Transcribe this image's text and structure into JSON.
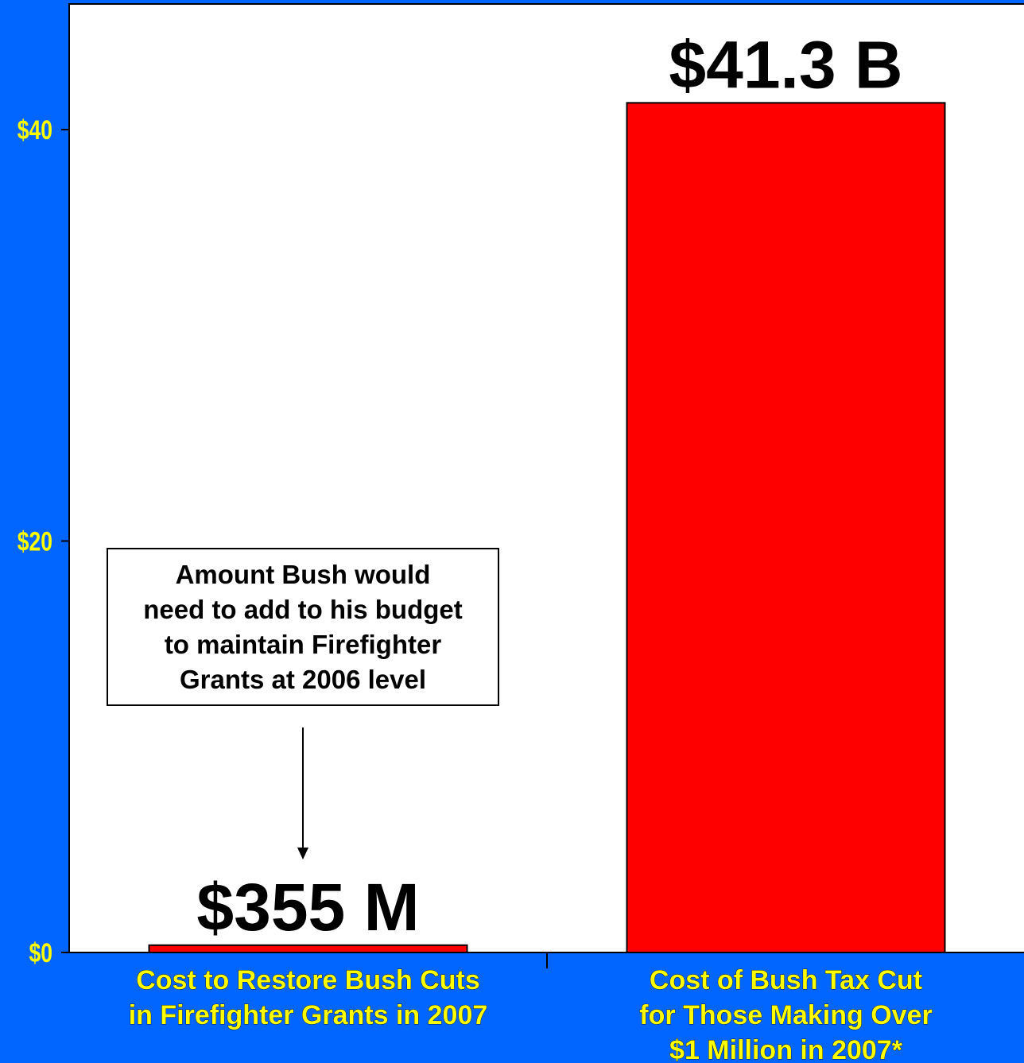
{
  "chart_data": {
    "type": "bar",
    "categories": [
      [
        "Cost to Restore Bush Cuts",
        "in Firefighter Grants in 2007"
      ],
      [
        "Cost of Bush Tax Cut",
        "for Those Making Over",
        "$1 Million in 2007*"
      ]
    ],
    "values": [
      0.355,
      41.3
    ],
    "data_labels": [
      "$355 M",
      "$41.3 B"
    ],
    "y_ticks": [
      {
        "value": 0,
        "label": "$0"
      },
      {
        "value": 20,
        "label": "$20"
      },
      {
        "value": 40,
        "label": "$40"
      }
    ],
    "ylim": [
      0,
      40
    ],
    "grid": false,
    "bar_color": "#ff0000",
    "background_color": "#0066ff",
    "plot_background": "#ffffff",
    "tick_label_color": "#ffff00",
    "annotation": {
      "lines": [
        "Amount Bush would",
        "need to add to his budget",
        "to maintain Firefighter",
        "Grants at 2006 level"
      ],
      "arrow_target": "$355 M"
    }
  }
}
